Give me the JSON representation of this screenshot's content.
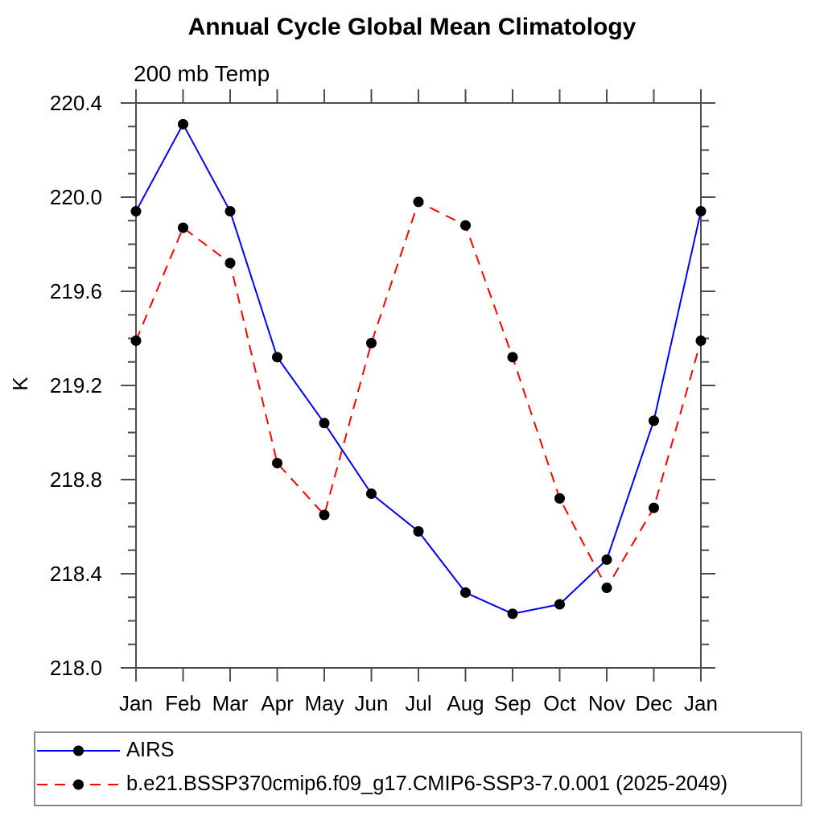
{
  "page": {
    "background": "#ffffff"
  },
  "chart_data": {
    "type": "line",
    "title": "Annual Cycle Global Mean Climatology",
    "subtitle": "200 mb Temp",
    "ylabel": "K",
    "xlabel": "",
    "categories": [
      "Jan",
      "Feb",
      "Mar",
      "Apr",
      "May",
      "Jun",
      "Jul",
      "Aug",
      "Sep",
      "Oct",
      "Nov",
      "Dec",
      "Jan"
    ],
    "series": [
      {
        "name": "AIRS",
        "color": "#0000ff",
        "line_style": "solid",
        "marker": "circle",
        "marker_color": "#000000",
        "values": [
          219.94,
          220.31,
          219.94,
          219.32,
          219.04,
          218.74,
          218.58,
          218.32,
          218.23,
          218.27,
          218.46,
          219.05,
          219.94
        ]
      },
      {
        "name": "b.e21.BSSP370cmip6.f09_g17.CMIP6-SSP3-7.0.001 (2025-2049)",
        "color": "#ff0000",
        "line_style": "dashed",
        "marker": "circle",
        "marker_color": "#000000",
        "values": [
          219.39,
          219.87,
          219.72,
          218.87,
          218.65,
          219.38,
          219.98,
          219.88,
          219.32,
          218.72,
          218.34,
          218.68,
          219.39
        ]
      }
    ],
    "ylim": [
      218.0,
      220.4
    ],
    "ytick_labels": [
      "218.0",
      "218.4",
      "218.8",
      "219.2",
      "219.6",
      "220.0",
      "220.4"
    ],
    "ytick_step": 0.4,
    "ytick_minor_step": 0.1,
    "grid": false,
    "legend_position": "bottom",
    "axis_color": "#4d4d4d",
    "text_color": "#000000"
  }
}
